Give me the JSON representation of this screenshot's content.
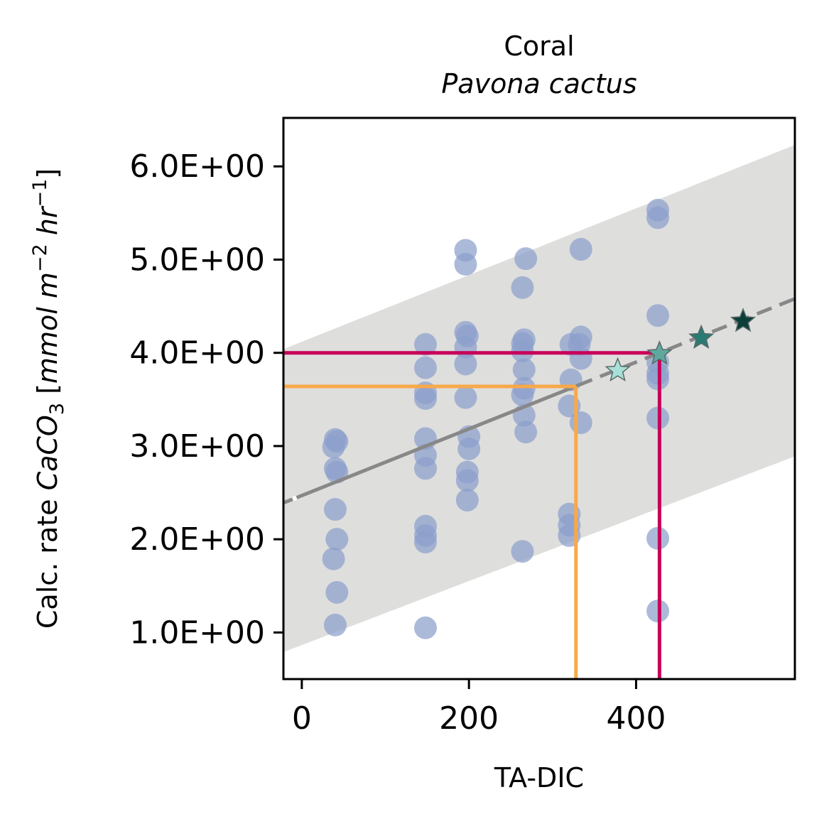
{
  "chart_data": {
    "type": "scatter",
    "title": "Coral",
    "subtitle": "Pavona cactus",
    "xlabel": "TA-DIC",
    "ylabel": {
      "prefix": "Calc. rate ",
      "chem": "CaCO",
      "chem_sub": "3",
      "open": " [",
      "unit1": "mmol m",
      "unit1_sup": "−2",
      "unit2": " hr",
      "unit2_sup": "−1",
      "close": "]"
    },
    "xlim": [
      -22,
      590
    ],
    "ylim": [
      0.5,
      6.52
    ],
    "x_ticks": [
      0,
      200,
      400
    ],
    "x_tick_labels": [
      "0",
      "200",
      "400"
    ],
    "y_ticks": [
      1,
      2,
      3,
      4,
      5,
      6
    ],
    "y_tick_labels": [
      "1.0E+00",
      "2.0E+00",
      "3.0E+00",
      "4.0E+00",
      "5.0E+00",
      "6.0E+00"
    ],
    "grid": false,
    "points": [
      {
        "x": 40,
        "y": 3.07
      },
      {
        "x": 42,
        "y": 3.05
      },
      {
        "x": 38,
        "y": 2.99
      },
      {
        "x": 40,
        "y": 2.76
      },
      {
        "x": 42,
        "y": 2.72
      },
      {
        "x": 40,
        "y": 2.32
      },
      {
        "x": 42,
        "y": 2.0
      },
      {
        "x": 38,
        "y": 1.79
      },
      {
        "x": 42,
        "y": 1.43
      },
      {
        "x": 40,
        "y": 1.08
      },
      {
        "x": 148,
        "y": 4.09
      },
      {
        "x": 148,
        "y": 3.84
      },
      {
        "x": 148,
        "y": 3.57
      },
      {
        "x": 148,
        "y": 3.51
      },
      {
        "x": 148,
        "y": 3.08
      },
      {
        "x": 148,
        "y": 2.9
      },
      {
        "x": 148,
        "y": 2.76
      },
      {
        "x": 148,
        "y": 2.14
      },
      {
        "x": 148,
        "y": 2.04
      },
      {
        "x": 148,
        "y": 1.97
      },
      {
        "x": 148,
        "y": 1.05
      },
      {
        "x": 196,
        "y": 5.1
      },
      {
        "x": 196,
        "y": 4.95
      },
      {
        "x": 196,
        "y": 4.22
      },
      {
        "x": 198,
        "y": 4.18
      },
      {
        "x": 196,
        "y": 4.06
      },
      {
        "x": 196,
        "y": 3.88
      },
      {
        "x": 196,
        "y": 3.52
      },
      {
        "x": 200,
        "y": 3.1
      },
      {
        "x": 200,
        "y": 2.97
      },
      {
        "x": 198,
        "y": 2.72
      },
      {
        "x": 198,
        "y": 2.63
      },
      {
        "x": 198,
        "y": 2.42
      },
      {
        "x": 268,
        "y": 5.01
      },
      {
        "x": 264,
        "y": 4.7
      },
      {
        "x": 266,
        "y": 4.14
      },
      {
        "x": 264,
        "y": 4.1
      },
      {
        "x": 264,
        "y": 4.02
      },
      {
        "x": 266,
        "y": 3.82
      },
      {
        "x": 266,
        "y": 3.62
      },
      {
        "x": 264,
        "y": 3.55
      },
      {
        "x": 266,
        "y": 3.33
      },
      {
        "x": 268,
        "y": 3.15
      },
      {
        "x": 264,
        "y": 1.87
      },
      {
        "x": 334,
        "y": 5.11
      },
      {
        "x": 334,
        "y": 4.17
      },
      {
        "x": 332,
        "y": 4.09
      },
      {
        "x": 334,
        "y": 3.94
      },
      {
        "x": 322,
        "y": 4.09
      },
      {
        "x": 322,
        "y": 3.71
      },
      {
        "x": 320,
        "y": 3.43
      },
      {
        "x": 334,
        "y": 3.25
      },
      {
        "x": 320,
        "y": 2.27
      },
      {
        "x": 320,
        "y": 2.15
      },
      {
        "x": 320,
        "y": 2.04
      },
      {
        "x": 426,
        "y": 5.53
      },
      {
        "x": 426,
        "y": 5.45
      },
      {
        "x": 426,
        "y": 4.4
      },
      {
        "x": 426,
        "y": 3.9
      },
      {
        "x": 426,
        "y": 3.78
      },
      {
        "x": 426,
        "y": 3.72
      },
      {
        "x": 426,
        "y": 3.3
      },
      {
        "x": 426,
        "y": 2.01
      },
      {
        "x": 426,
        "y": 1.23
      }
    ],
    "point_color": "#8ca0cc",
    "regression": {
      "x_start": -22,
      "x_end": 590,
      "y_start": 2.39,
      "y_end": 4.58,
      "solid_until_x": 330,
      "color": "#888888"
    },
    "prediction_band": {
      "x": [
        -22,
        590
      ],
      "upper": [
        4.04,
        6.23
      ],
      "lower": [
        0.79,
        2.89
      ],
      "color": "#dededd"
    },
    "markers": [
      {
        "x": 378,
        "y": 3.81,
        "color": "#a8e0d8"
      },
      {
        "x": 428,
        "y": 3.99,
        "color": "#5fa8a0"
      },
      {
        "x": 478,
        "y": 4.16,
        "color": "#2a7a74"
      },
      {
        "x": 528,
        "y": 4.34,
        "color": "#0c3e3a"
      }
    ],
    "reference_lines": [
      {
        "x": 328,
        "y": 3.64,
        "color": "#f7a94a"
      },
      {
        "x": 428,
        "y": 4.0,
        "color": "#c8005a"
      }
    ]
  }
}
